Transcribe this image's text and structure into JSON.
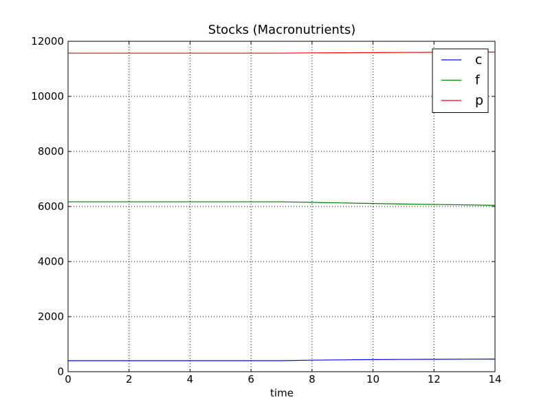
{
  "chart_data": {
    "type": "line",
    "title": "Stocks (Macronutrients)",
    "xlabel": "time",
    "ylabel": "",
    "xlim": [
      0,
      14
    ],
    "ylim": [
      0,
      12000
    ],
    "xticks": [
      "0",
      "2",
      "4",
      "6",
      "8",
      "10",
      "12",
      "14"
    ],
    "yticks": [
      "0",
      "2000",
      "4000",
      "6000",
      "8000",
      "10000",
      "12000"
    ],
    "grid": true,
    "legend_position": "top-right",
    "series": [
      {
        "name": "c",
        "color": "#0000ff",
        "x": [
          0,
          1,
          2,
          3,
          4,
          5,
          6,
          7,
          8,
          9,
          10,
          11,
          12,
          13,
          14
        ],
        "values": [
          400,
          400,
          400,
          400,
          400,
          400,
          400,
          400,
          420,
          430,
          440,
          445,
          450,
          455,
          460
        ]
      },
      {
        "name": "f",
        "color": "#008000",
        "x": [
          0,
          1,
          2,
          3,
          4,
          5,
          6,
          7,
          8,
          9,
          10,
          11,
          12,
          13,
          14
        ],
        "values": [
          6170,
          6170,
          6170,
          6170,
          6170,
          6170,
          6170,
          6170,
          6150,
          6130,
          6110,
          6090,
          6075,
          6060,
          6040
        ]
      },
      {
        "name": "p",
        "color": "#ff0000",
        "x": [
          0,
          1,
          2,
          3,
          4,
          5,
          6,
          7,
          8,
          9,
          10,
          11,
          12,
          13,
          14
        ],
        "values": [
          11570,
          11570,
          11570,
          11570,
          11570,
          11570,
          11570,
          11570,
          11580,
          11585,
          11590,
          11595,
          11600,
          11605,
          11610
        ]
      }
    ]
  }
}
